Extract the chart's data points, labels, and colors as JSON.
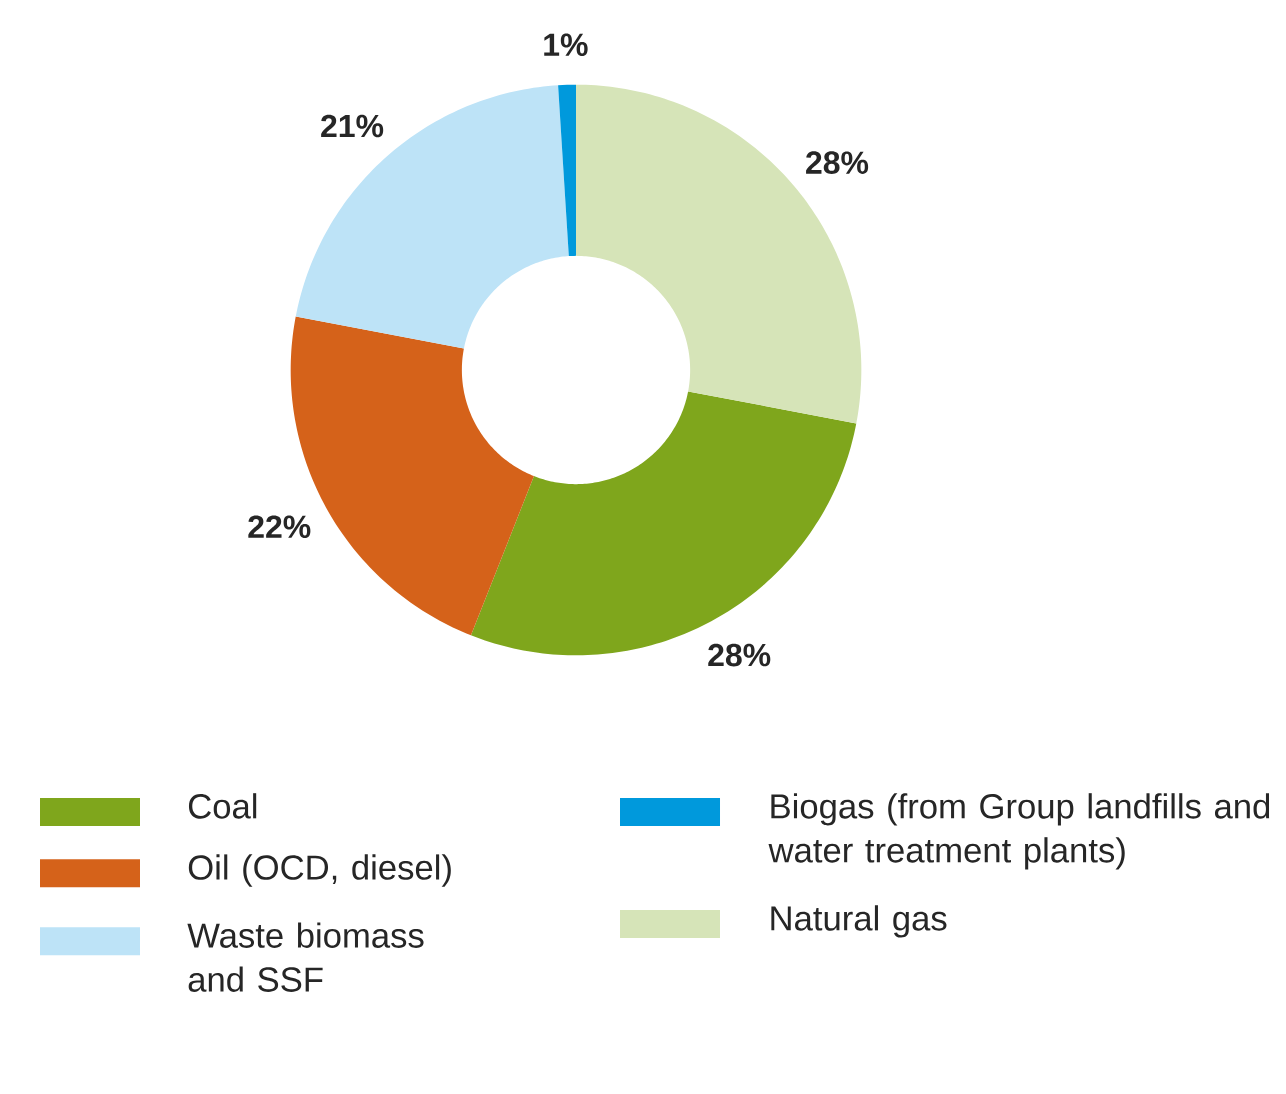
{
  "chart_data": {
    "type": "donut",
    "categories": [
      "Coal",
      "Oil (OCD, diesel)",
      "Waste biomass and SSF",
      "Biogas (from Group landfills and water treatment plants)",
      "Natural gas"
    ],
    "values": [
      28,
      22,
      21,
      1,
      28
    ],
    "colors": [
      "#7fa61c",
      "#d5621a",
      "#bde3f7",
      "#0099dc",
      "#d6e4b8"
    ],
    "value_labels": [
      "28%",
      "22%",
      "21%",
      "1%",
      "28%"
    ],
    "legend": "bottom"
  }
}
